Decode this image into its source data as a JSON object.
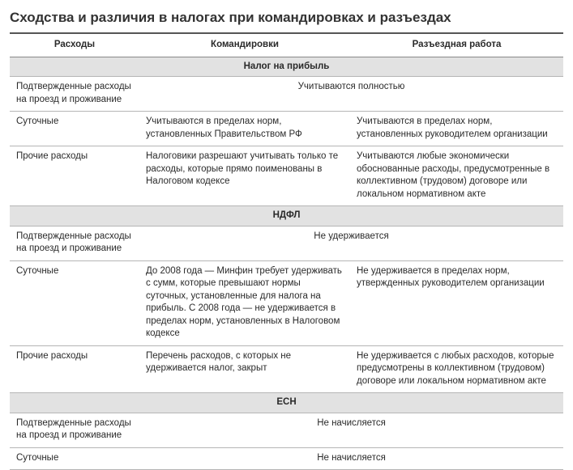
{
  "title": "Сходства и различия в налогах при командировках и разъездах",
  "columns": {
    "expenses": "Расходы",
    "business_trips": "Командировки",
    "traveling_work": "Разъездная работа"
  },
  "sections": [
    {
      "name": "Налог на прибыль",
      "rows": [
        {
          "label": "Подтвержденные расходы на проезд и проживание",
          "merged": "Учитываются полностью"
        },
        {
          "label": "Суточные",
          "trips": "Учитываются в пределах норм, установленных Правительством РФ",
          "travel": "Учитываются в пределах норм, установленных руководителем организации"
        },
        {
          "label": "Прочие расходы",
          "trips": "Налоговики разрешают учитывать только те расходы, которые прямо поименованы в Налоговом кодексе",
          "travel": "Учитываются любые экономически обоснованные расходы, предусмотренные в коллективном (трудовом) договоре или локальном нормативном акте"
        }
      ]
    },
    {
      "name": "НДФЛ",
      "rows": [
        {
          "label": "Подтвержденные расходы на проезд и проживание",
          "merged": "Не удерживается"
        },
        {
          "label": "Суточные",
          "trips": "До 2008 года — Минфин требует удерживать с сумм, которые превышают нормы суточных, установленные для налога на прибыль. С 2008 года — не удерживается в пределах норм, установленных в Налоговом кодексе",
          "travel": "Не удерживается в пределах норм, утвержденных руководителем организации"
        },
        {
          "label": "Прочие расходы",
          "trips": "Перечень расходов, с которых не удерживается налог, закрыт",
          "travel": "Не удерживается с любых расходов, которые предусмотрены в коллективном (трудовом) договоре или локальном нормативном акте"
        }
      ]
    },
    {
      "name": "ЕСН",
      "rows": [
        {
          "label": "Подтвержденные расходы на проезд и проживание",
          "merged": "Не начисляется"
        },
        {
          "label": "Суточные",
          "merged": "Не начисляется"
        }
      ]
    }
  ]
}
